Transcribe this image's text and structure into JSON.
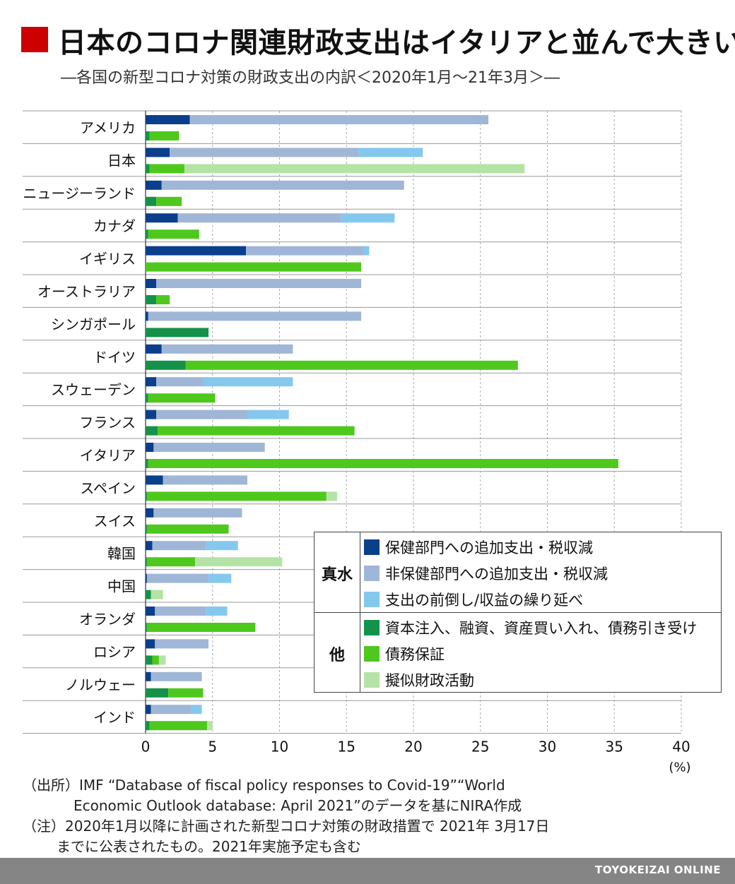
{
  "header": {
    "title": "日本のコロナ関連財政支出はイタリアと並んで大きい",
    "subtitle": "―各国の新型コロナ対策の財政支出の内訳＜2020年1月～21年3月＞―"
  },
  "colors": {
    "health": "#0b3f8c",
    "nonhealth": "#a0b6d6",
    "accelerated": "#85c8ee",
    "equity": "#14924a",
    "guarantee": "#4fc81e",
    "quasi": "#b5e3a5",
    "accent": "#cc0000"
  },
  "legend": {
    "group_a": "真水",
    "group_b": "他",
    "items": [
      {
        "label": "保健部門への追加支出・税収減",
        "color": "#0b3f8c"
      },
      {
        "label": "非保健部門への追加支出・税収減",
        "color": "#a0b6d6"
      },
      {
        "label": "支出の前倒し/収益の繰り延べ",
        "color": "#85c8ee"
      },
      {
        "label": "資本注入、融資、資産買い入れ、債務引き受け",
        "color": "#14924a"
      },
      {
        "label": "債務保証",
        "color": "#4fc81e"
      },
      {
        "label": "擬似財政活動",
        "color": "#b5e3a5"
      }
    ]
  },
  "chart_data": {
    "type": "bar",
    "orientation": "horizontal",
    "stacked": true,
    "unit": "(%)",
    "xlim": [
      0,
      40
    ],
    "xticks": [
      0,
      5,
      10,
      15,
      20,
      25,
      30,
      35,
      40
    ],
    "categories": [
      "アメリカ",
      "日本",
      "ニュージーランド",
      "カナダ",
      "イギリス",
      "オーストラリア",
      "シンガポール",
      "ドイツ",
      "スウェーデン",
      "フランス",
      "イタリア",
      "スペイン",
      "スイス",
      "韓国",
      "中国",
      "オランダ",
      "ロシア",
      "ノルウェー",
      "インド"
    ],
    "groups": [
      {
        "name": "真水",
        "series": [
          {
            "name": "保健部門への追加支出・税収減",
            "values": [
              3.3,
              1.8,
              1.2,
              2.4,
              7.5,
              0.8,
              0.2,
              1.2,
              0.8,
              0.8,
              0.6,
              1.3,
              0.6,
              0.5,
              0.1,
              0.7,
              0.7,
              0.4,
              0.4
            ]
          },
          {
            "name": "非保健部門への追加支出・税収減",
            "values": [
              22.3,
              14.1,
              18.1,
              12.2,
              8.8,
              15.3,
              15.9,
              9.8,
              3.5,
              6.8,
              8.3,
              6.3,
              6.6,
              4.0,
              4.6,
              3.8,
              4.0,
              3.8,
              3.0
            ]
          },
          {
            "name": "支出の前倒し/収益の繰り延べ",
            "values": [
              0,
              4.8,
              0,
              4.0,
              0.4,
              0,
              0,
              0,
              6.7,
              3.1,
              0,
              0,
              0,
              2.4,
              1.7,
              1.6,
              0,
              0,
              0.8
            ]
          }
        ]
      },
      {
        "name": "他",
        "series": [
          {
            "name": "資本注入、融資、資産買い入れ、債務引き受け",
            "values": [
              0.3,
              0.3,
              0.8,
              0.2,
              0,
              0.8,
              4.7,
              3.0,
              0.2,
              0.9,
              0.2,
              0.1,
              0.1,
              0.1,
              0.4,
              0.1,
              0.5,
              1.7,
              0.3
            ]
          },
          {
            "name": "債務保証",
            "values": [
              2.2,
              2.6,
              1.9,
              3.8,
              16.1,
              1.0,
              0,
              24.8,
              5.0,
              14.7,
              35.1,
              13.4,
              6.1,
              3.6,
              0,
              8.1,
              0.5,
              2.6,
              4.3
            ]
          },
          {
            "name": "擬似財政活動",
            "values": [
              0,
              25.4,
              0,
              0,
              0,
              0,
              0,
              0,
              0,
              0,
              0,
              0.8,
              0,
              6.5,
              0.9,
              0,
              0.5,
              0,
              0.4
            ]
          }
        ]
      }
    ]
  },
  "notes": {
    "source_line1": "（出所）IMF “Database of fiscal policy responses to Covid-19”“World",
    "source_line2": "Economic Outlook database: April 2021”のデータを基にNIRA作成",
    "note_line1": "（注）2020年1月以降に計画された新型コロナ対策の財政措置で 2021年 3月17日",
    "note_line2": "までに公表されたもの。2021年実施予定も含む"
  },
  "footer": {
    "brand": "TOYOKEIZAI ONLINE"
  }
}
